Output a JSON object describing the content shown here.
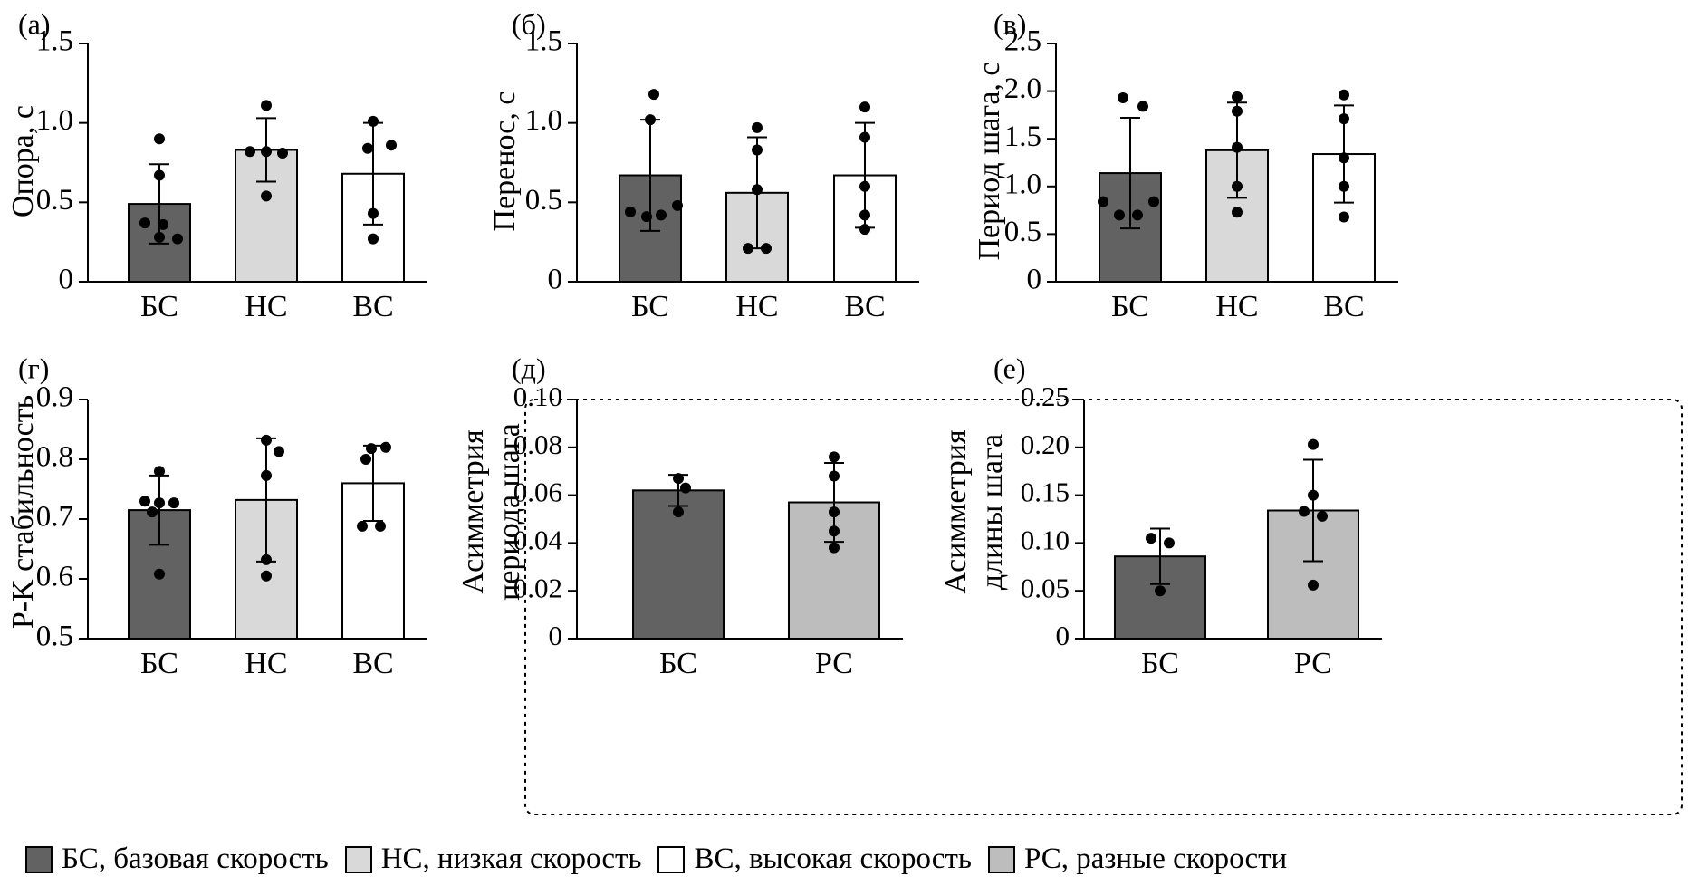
{
  "colors": {
    "bs": "#626262",
    "ns": "#d9d9d9",
    "vs": "#ffffff",
    "rs": "#bdbdbd"
  },
  "chart_data": [
    {
      "panel": "(а)",
      "type": "bar",
      "ylabel": "Опора, с",
      "categories": [
        "БС",
        "НС",
        "ВС"
      ],
      "color_keys": [
        "bs",
        "ns",
        "vs"
      ],
      "ylim": [
        0,
        1.5
      ],
      "yticks": [
        0,
        0.5,
        1.0,
        1.5
      ],
      "tick_labels": [
        "0",
        "0.5",
        "1.0",
        "1.5"
      ],
      "values": [
        0.49,
        0.83,
        0.68
      ],
      "errors": [
        0.25,
        0.2,
        0.32
      ],
      "points": [
        [
          0.9,
          0.67,
          0.37,
          0.36,
          0.27,
          0.28
        ],
        [
          1.11,
          0.82,
          0.82,
          0.81,
          0.54
        ],
        [
          1.01,
          0.86,
          0.84,
          0.43,
          0.27
        ]
      ]
    },
    {
      "panel": "(б)",
      "type": "bar",
      "ylabel": "Перенос, с",
      "categories": [
        "БС",
        "НС",
        "ВС"
      ],
      "color_keys": [
        "bs",
        "ns",
        "vs"
      ],
      "ylim": [
        0,
        1.5
      ],
      "yticks": [
        0,
        0.5,
        1.0,
        1.5
      ],
      "tick_labels": [
        "0",
        "0.5",
        "1.0",
        "1.5"
      ],
      "values": [
        0.67,
        0.56,
        0.67
      ],
      "errors": [
        0.35,
        0.35,
        0.33
      ],
      "points": [
        [
          1.18,
          1.02,
          0.44,
          0.41,
          0.42,
          0.48
        ],
        [
          0.97,
          0.83,
          0.58,
          0.21,
          0.21
        ],
        [
          1.1,
          0.91,
          0.6,
          0.42,
          0.33
        ]
      ]
    },
    {
      "panel": "(в)",
      "type": "bar",
      "ylabel": "Период шага, с",
      "categories": [
        "БС",
        "НС",
        "ВС"
      ],
      "color_keys": [
        "bs",
        "ns",
        "vs"
      ],
      "ylim": [
        0,
        2.5
      ],
      "yticks": [
        0,
        0.5,
        1.0,
        1.5,
        2.0,
        2.5
      ],
      "tick_labels": [
        "0",
        "0.5",
        "1.0",
        "1.5",
        "2.0",
        "2.5"
      ],
      "values": [
        1.14,
        1.38,
        1.34
      ],
      "errors": [
        0.58,
        0.5,
        0.51
      ],
      "points": [
        [
          1.93,
          1.84,
          0.84,
          0.7,
          0.7,
          0.84
        ],
        [
          1.94,
          1.79,
          1.41,
          1.0,
          0.73
        ],
        [
          1.96,
          1.71,
          1.3,
          1.0,
          0.68
        ]
      ]
    },
    {
      "panel": "(г)",
      "type": "bar",
      "ylabel": "P-K стабильность",
      "categories": [
        "БС",
        "НС",
        "ВС"
      ],
      "color_keys": [
        "bs",
        "ns",
        "vs"
      ],
      "ylim": [
        0.5,
        0.9
      ],
      "yticks": [
        0.5,
        0.6,
        0.7,
        0.8,
        0.9
      ],
      "tick_labels": [
        "0.5",
        "0.6",
        "0.7",
        "0.8",
        "0.9"
      ],
      "values": [
        0.715,
        0.732,
        0.76
      ],
      "errors": [
        0.058,
        0.103,
        0.063
      ],
      "points": [
        [
          0.78,
          0.73,
          0.727,
          0.712,
          0.727,
          0.608
        ],
        [
          0.832,
          0.813,
          0.773,
          0.632,
          0.605
        ],
        [
          0.82,
          0.8,
          0.818,
          0.688,
          0.688
        ]
      ]
    },
    {
      "panel": "(д)",
      "type": "bar",
      "ylabel_lines": [
        "Асимметрия",
        "периода шага"
      ],
      "categories": [
        "БС",
        "РС"
      ],
      "color_keys": [
        "bs",
        "rs"
      ],
      "ylim": [
        0,
        0.1
      ],
      "yticks": [
        0,
        0.02,
        0.04,
        0.06,
        0.08,
        0.1
      ],
      "tick_labels": [
        "0",
        "0.02",
        "0.04",
        "0.06",
        "0.08",
        "0.10"
      ],
      "values": [
        0.062,
        0.057
      ],
      "errors": [
        0.0065,
        0.0165
      ],
      "points": [
        [
          0.067,
          0.063,
          0.053
        ],
        [
          0.076,
          0.068,
          0.053,
          0.045,
          0.038
        ]
      ]
    },
    {
      "panel": "(е)",
      "type": "bar",
      "ylabel_lines": [
        "Асимметрия",
        "длины шага"
      ],
      "categories": [
        "БС",
        "РС"
      ],
      "color_keys": [
        "bs",
        "rs"
      ],
      "ylim": [
        0,
        0.25
      ],
      "yticks": [
        0,
        0.05,
        0.1,
        0.15,
        0.2,
        0.25
      ],
      "tick_labels": [
        "0",
        "0.05",
        "0.10",
        "0.15",
        "0.20",
        "0.25"
      ],
      "values": [
        0.086,
        0.134
      ],
      "errors": [
        0.029,
        0.053
      ],
      "points": [
        [
          0.105,
          0.1,
          0.05
        ],
        [
          0.203,
          0.15,
          0.133,
          0.128,
          0.056
        ]
      ]
    }
  ],
  "legend": [
    {
      "color_key": "bs",
      "label": "БС, базовая скорость"
    },
    {
      "color_key": "ns",
      "label": "НС, низкая скорость"
    },
    {
      "color_key": "vs",
      "label": "ВС, высокая скорость"
    },
    {
      "color_key": "rs",
      "label": "РС, разные скорости"
    }
  ]
}
